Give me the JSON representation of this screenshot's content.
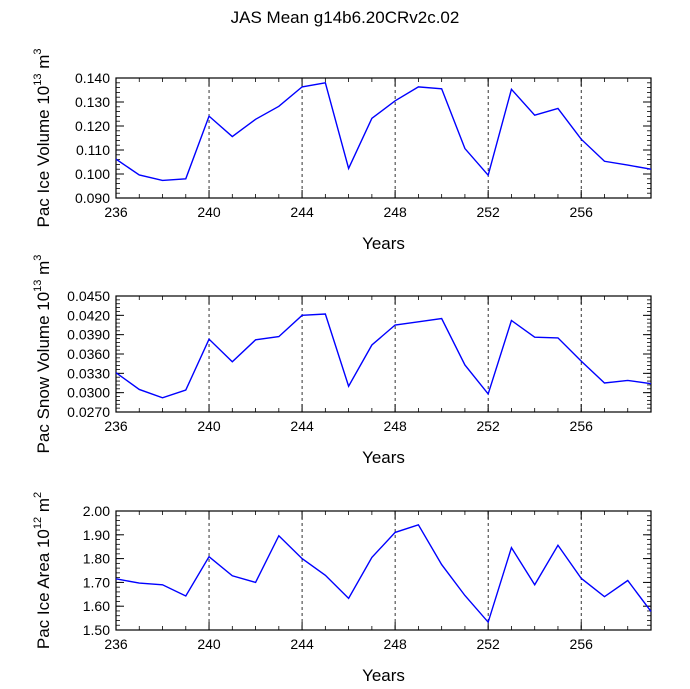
{
  "title": "JAS Mean g14b6.20CRv2c.02",
  "chart_data": [
    {
      "type": "line",
      "ylabel_main": "Pac Ice Volume 10",
      "ylabel_exp": "13",
      "ylabel_unit": " m",
      "ylabel_unit_exp": "3",
      "xlabel": "Years",
      "xlim": [
        236,
        259
      ],
      "ylim": [
        0.09,
        0.14
      ],
      "yticks": [
        0.09,
        0.1,
        0.11,
        0.12,
        0.13,
        0.14
      ],
      "ytick_labels": [
        "0.090",
        "0.100",
        "0.110",
        "0.120",
        "0.130",
        "0.140"
      ],
      "xticks": [
        236,
        240,
        244,
        248,
        252,
        256
      ],
      "xtick_labels": [
        "236",
        "240",
        "244",
        "248",
        "252",
        "256"
      ],
      "series_color": "#0000ff",
      "x": [
        236,
        237,
        238,
        239,
        240,
        241,
        242,
        243,
        244,
        245,
        246,
        247,
        248,
        249,
        250,
        251,
        252,
        253,
        254,
        255,
        256,
        257,
        258,
        259
      ],
      "values": [
        0.1062,
        0.0996,
        0.0973,
        0.098,
        0.1241,
        0.1156,
        0.1228,
        0.1282,
        0.1363,
        0.138,
        0.1023,
        0.1232,
        0.1305,
        0.1363,
        0.1355,
        0.1106,
        0.0995,
        0.1353,
        0.1245,
        0.1273,
        0.1145,
        0.1053,
        0.1037,
        0.102
      ]
    },
    {
      "type": "line",
      "ylabel_main": "Pac Snow Volume 10",
      "ylabel_exp": "13",
      "ylabel_unit": " m",
      "ylabel_unit_exp": "3",
      "xlabel": "Years",
      "xlim": [
        236,
        259
      ],
      "ylim": [
        0.027,
        0.045
      ],
      "yticks": [
        0.027,
        0.03,
        0.033,
        0.036,
        0.039,
        0.042,
        0.045
      ],
      "ytick_labels": [
        "0.0270",
        "0.0300",
        "0.0330",
        "0.0360",
        "0.0390",
        "0.0420",
        "0.0450"
      ],
      "xticks": [
        236,
        240,
        244,
        248,
        252,
        256
      ],
      "xtick_labels": [
        "236",
        "240",
        "244",
        "248",
        "252",
        "256"
      ],
      "series_color": "#0000ff",
      "x": [
        236,
        237,
        238,
        239,
        240,
        241,
        242,
        243,
        244,
        245,
        246,
        247,
        248,
        249,
        250,
        251,
        252,
        253,
        254,
        255,
        256,
        257,
        258,
        259
      ],
      "values": [
        0.0331,
        0.0305,
        0.0292,
        0.0304,
        0.0383,
        0.0348,
        0.0382,
        0.0387,
        0.042,
        0.0422,
        0.031,
        0.0374,
        0.0405,
        0.041,
        0.0415,
        0.0343,
        0.0298,
        0.0412,
        0.0386,
        0.0385,
        0.0349,
        0.0315,
        0.0319,
        0.0314
      ]
    },
    {
      "type": "line",
      "ylabel_main": "Pac Ice Area 10",
      "ylabel_exp": "12",
      "ylabel_unit": " m",
      "ylabel_unit_exp": "2",
      "xlabel": "Years",
      "xlim": [
        236,
        259
      ],
      "ylim": [
        1.5,
        2.0
      ],
      "yticks": [
        1.5,
        1.6,
        1.7,
        1.8,
        1.9,
        2.0
      ],
      "ytick_labels": [
        "1.50",
        "1.60",
        "1.70",
        "1.80",
        "1.90",
        "2.00"
      ],
      "xticks": [
        236,
        240,
        244,
        248,
        252,
        256
      ],
      "xtick_labels": [
        "236",
        "240",
        "244",
        "248",
        "252",
        "256"
      ],
      "series_color": "#0000ff",
      "x": [
        236,
        237,
        238,
        239,
        240,
        241,
        242,
        243,
        244,
        245,
        246,
        247,
        248,
        249,
        250,
        251,
        252,
        253,
        254,
        255,
        256,
        257,
        258,
        259
      ],
      "values": [
        1.715,
        1.697,
        1.69,
        1.643,
        1.808,
        1.728,
        1.7,
        1.896,
        1.8,
        1.73,
        1.633,
        1.805,
        1.91,
        1.942,
        1.775,
        1.645,
        1.533,
        1.846,
        1.69,
        1.856,
        1.717,
        1.64,
        1.708,
        1.578
      ]
    }
  ]
}
